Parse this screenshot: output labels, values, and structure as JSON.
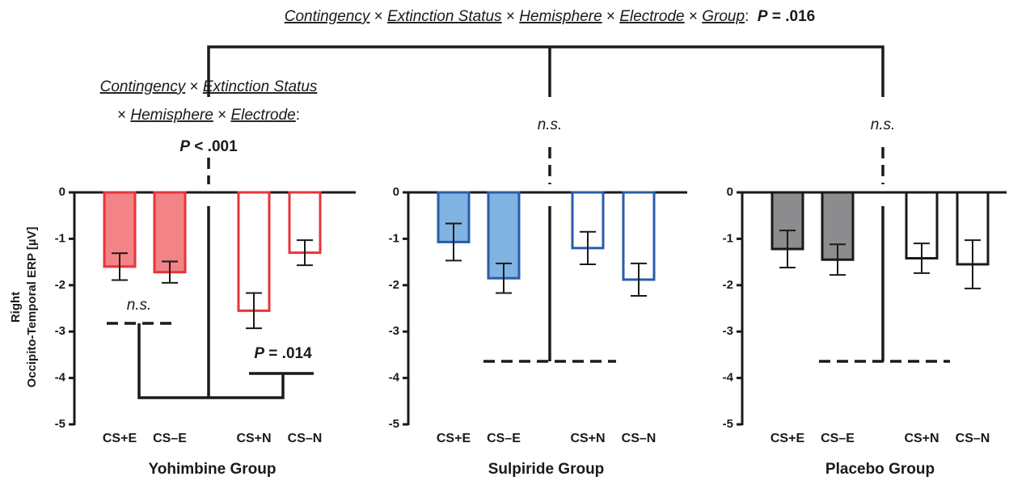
{
  "chart_data": [
    {
      "type": "bar",
      "title": "Yohimbine Group",
      "y_label": [
        "Right",
        "Occipito-Temporal ERP [µV]"
      ],
      "categories": [
        "CS+E",
        "CS–E",
        "CS+N",
        "CS–N"
      ],
      "values": [
        -1.6,
        -1.72,
        -2.55,
        -1.3
      ],
      "errors": [
        0.29,
        0.23,
        0.38,
        0.27
      ],
      "color": "#e8343a",
      "fills": [
        "#f28386",
        "#f28386",
        "#ffffff",
        "#ffffff"
      ],
      "ylim": [
        -5,
        0
      ],
      "yticks": [
        0,
        -1,
        -2,
        -3,
        -4,
        -5
      ],
      "grid": false
    },
    {
      "type": "bar",
      "title": "Sulpiride Group",
      "categories": [
        "CS+E",
        "CS–E",
        "CS+N",
        "CS–N"
      ],
      "values": [
        -1.07,
        -1.85,
        -1.2,
        -1.88
      ],
      "errors": [
        0.4,
        0.32,
        0.35,
        0.35
      ],
      "color": "#2a5ca8",
      "fills": [
        "#7fb3e2",
        "#7fb3e2",
        "#ffffff",
        "#ffffff"
      ],
      "ylim": [
        -5,
        0
      ],
      "yticks": [
        0,
        -1,
        -2,
        -3,
        -4,
        -5
      ],
      "grid": false
    },
    {
      "type": "bar",
      "title": "Placebo Group",
      "categories": [
        "CS+E",
        "CS–E",
        "CS+N",
        "CS–N"
      ],
      "values": [
        -1.22,
        -1.45,
        -1.42,
        -1.55
      ],
      "errors": [
        0.4,
        0.33,
        0.32,
        0.52
      ],
      "color": "#1a1a1a",
      "fills": [
        "#8c8c8e",
        "#8c8c8e",
        "#ffffff",
        "#ffffff"
      ],
      "ylim": [
        -5,
        0
      ],
      "yticks": [
        0,
        -1,
        -2,
        -3,
        -4,
        -5
      ],
      "grid": false
    }
  ],
  "annotations": [
    [
      {
        "text": "Contingency",
        "style": "underline"
      },
      {
        "text": " × ",
        "style": "plain"
      },
      {
        "text": "Extinction Status",
        "style": "underline"
      },
      {
        "text": " × ",
        "style": "plain"
      },
      {
        "text": "Hemisphere",
        "style": "underline"
      },
      {
        "text": " × ",
        "style": "plain"
      },
      {
        "text": "Electrode",
        "style": "underline"
      },
      {
        "text": " × ",
        "style": "plain"
      },
      {
        "text": "Group",
        "style": "underline"
      },
      {
        "text": ":  ",
        "style": "plain"
      },
      {
        "text": "P",
        "style": "bold-italic"
      },
      {
        "text": " = .016",
        "style": "bold"
      }
    ],
    [
      {
        "text": "Contingency",
        "style": "underline"
      },
      {
        "text": " × ",
        "style": "plain"
      },
      {
        "text": "Extinction Status",
        "style": "underline"
      }
    ],
    [
      {
        "text": "× ",
        "style": "plain"
      },
      {
        "text": "Hemisphere",
        "style": "underline"
      },
      {
        "text": " × ",
        "style": "plain"
      },
      {
        "text": "Electrode",
        "style": "underline"
      },
      {
        "text": ":",
        "style": "plain"
      }
    ],
    [
      {
        "text": "P",
        "style": "bold-italic"
      },
      {
        "text": " < .001",
        "style": "bold"
      }
    ],
    [
      {
        "text": "n.s.",
        "style": "italic"
      }
    ],
    [
      {
        "text": "n.s.",
        "style": "italic"
      }
    ],
    [
      {
        "text": "n.s.",
        "style": "italic"
      }
    ],
    [
      {
        "text": "P",
        "style": "bold-italic"
      },
      {
        "text": " = .014",
        "style": "bold"
      }
    ]
  ]
}
